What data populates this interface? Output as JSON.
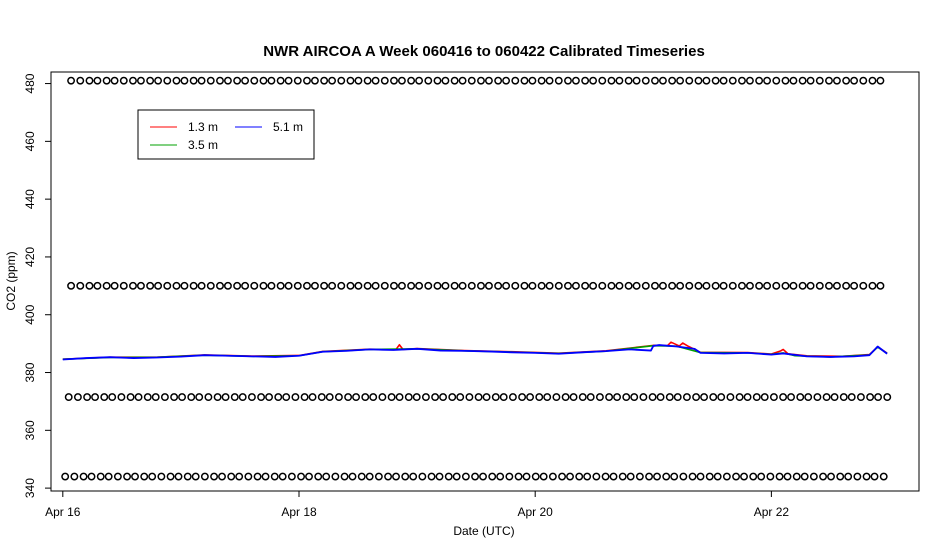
{
  "chart_data": {
    "type": "line",
    "title": "NWR AIRCOA A  Week 060416 to 060422  Calibrated Timeseries",
    "xlabel": "Date (UTC)",
    "ylabel": "CO2 (ppm)",
    "xlim": [
      -0.1,
      7.25
    ],
    "ylim": [
      339,
      484
    ],
    "x_ticks": [
      {
        "value": 0,
        "label": "Apr 16"
      },
      {
        "value": 2,
        "label": "Apr 18"
      },
      {
        "value": 4,
        "label": "Apr 20"
      },
      {
        "value": 6,
        "label": "Apr 22"
      }
    ],
    "y_ticks": [
      340,
      360,
      380,
      400,
      420,
      440,
      460,
      480
    ],
    "legend": {
      "placement": "top-left",
      "entries": [
        {
          "label": "1.3 m",
          "color": "#ff0000"
        },
        {
          "label": "3.5 m",
          "color": "#00a000"
        },
        {
          "label": "5.1 m",
          "color": "#0000ff"
        }
      ]
    },
    "calibration_points": {
      "marker": "open-circle",
      "color": "#000000",
      "levels": [
        {
          "y": 481,
          "x_start": 0.07,
          "x_end": 6.98
        },
        {
          "y": 410,
          "x_start": 0.07,
          "x_end": 6.98
        },
        {
          "y": 371.5,
          "x_start": 0.05,
          "x_end": 6.98
        },
        {
          "y": 344,
          "x_start": 0.02,
          "x_end": 6.98
        }
      ]
    },
    "series": [
      {
        "name": "5.1 m",
        "color": "#0000ff",
        "x": [
          0,
          0.2,
          0.4,
          0.6,
          0.8,
          1.0,
          1.2,
          1.4,
          1.6,
          1.8,
          2.0,
          2.1,
          2.2,
          2.4,
          2.6,
          2.8,
          3.0,
          3.2,
          3.4,
          3.6,
          3.8,
          4.0,
          4.2,
          4.4,
          4.6,
          4.8,
          4.98,
          5.0,
          5.05,
          5.2,
          5.35,
          5.4,
          5.6,
          5.8,
          6.0,
          6.1,
          6.3,
          6.5,
          6.7,
          6.83,
          6.9,
          6.98
        ],
        "y": [
          384.5,
          385,
          385.3,
          385,
          385.2,
          385.5,
          386,
          385.8,
          385.6,
          385.4,
          385.8,
          386.5,
          387.2,
          387.5,
          388,
          387.8,
          388.2,
          387.6,
          387.5,
          387.3,
          387,
          386.8,
          386.5,
          387,
          387.4,
          388,
          387.6,
          389.2,
          389.5,
          389,
          388.2,
          386.8,
          386.6,
          386.8,
          386.2,
          386.6,
          385.6,
          385.4,
          385.6,
          386,
          389,
          386.5
        ]
      },
      {
        "name": "3.5 m",
        "color": "#00a000",
        "x": [
          0,
          0.4,
          0.8,
          1.2,
          1.6,
          2.0,
          2.2,
          2.6,
          3.0,
          3.4,
          3.8,
          4.2,
          4.6,
          5.0,
          5.2,
          5.4,
          5.8,
          6.0,
          6.1,
          6.2,
          6.5,
          6.83,
          6.9,
          6.98
        ],
        "y": [
          384.6,
          385.2,
          385.3,
          386,
          385.6,
          385.8,
          387.2,
          388,
          388.2,
          387.5,
          387.1,
          386.6,
          387.4,
          389.3,
          389.1,
          386.9,
          386.8,
          386.3,
          386.8,
          385.8,
          385.4,
          386.1,
          388.8,
          386.6
        ]
      },
      {
        "name": "1.3 m",
        "color": "#ff0000",
        "x": [
          0,
          0.4,
          0.8,
          1.2,
          1.6,
          2.0,
          2.2,
          2.6,
          2.82,
          2.85,
          2.88,
          3.0,
          3.4,
          3.8,
          4.2,
          4.6,
          5.0,
          5.12,
          5.15,
          5.22,
          5.25,
          5.3,
          5.4,
          5.8,
          6.0,
          6.08,
          6.1,
          6.14,
          6.3,
          6.6,
          6.83,
          6.9,
          6.98
        ],
        "y": [
          384.6,
          385.3,
          385.3,
          386.1,
          385.7,
          385.9,
          387.3,
          388.1,
          387.9,
          389.6,
          388,
          388.3,
          387.6,
          387.2,
          386.7,
          387.5,
          389.4,
          389.3,
          390.5,
          389.2,
          390.2,
          389,
          387,
          386.9,
          386.4,
          387.5,
          388,
          386.5,
          385.8,
          385.6,
          386.2,
          388.9,
          386.7
        ]
      }
    ]
  }
}
